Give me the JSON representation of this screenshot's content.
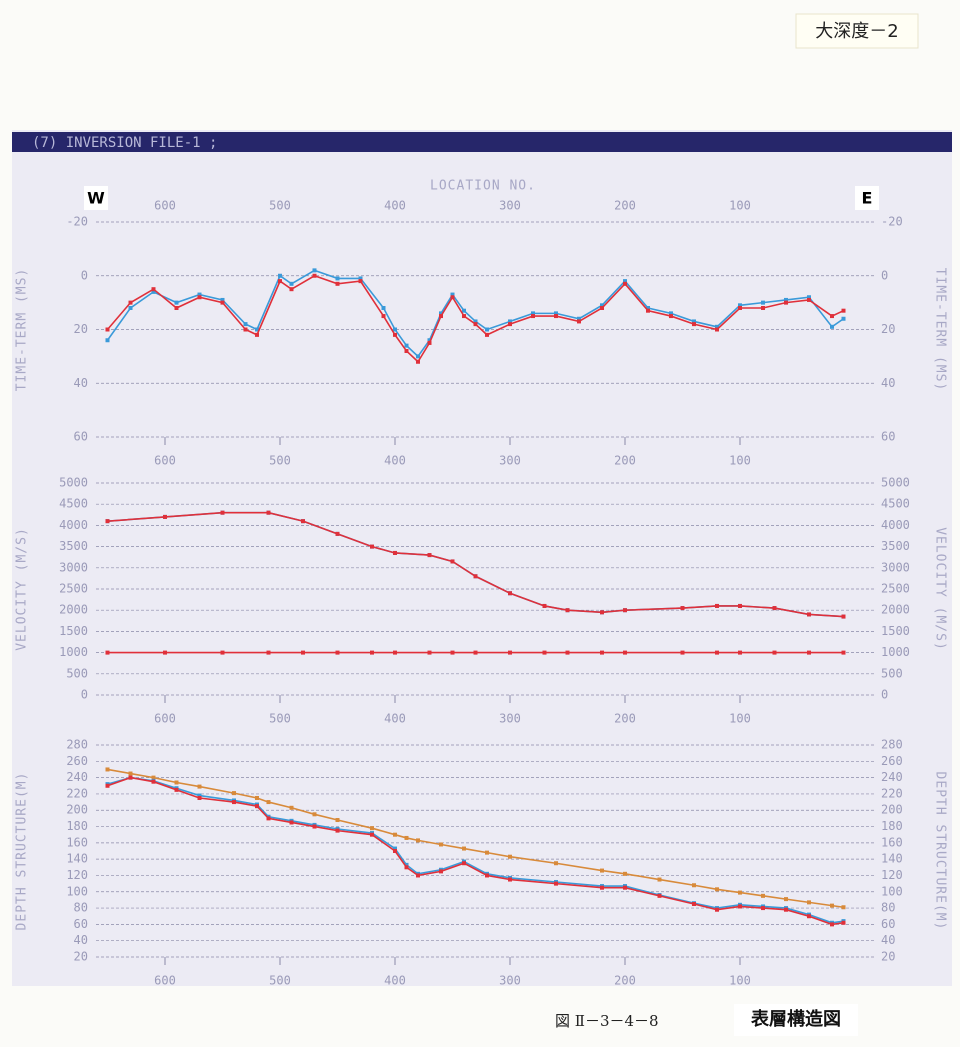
{
  "header_label": "大深度－2",
  "window_title": "(7) INVERSION FILE-1 ;",
  "direction": {
    "west": "W",
    "east": "E"
  },
  "caption": {
    "figure_no": "図 Ⅱ－3－4－8",
    "title": "表層構造図"
  },
  "chart_data": [
    {
      "type": "line",
      "xlabel": "LOCATION NO.",
      "ylabel": "TIME-TERM (MS)",
      "xlim": [
        660,
        0
      ],
      "xticks": [
        600,
        500,
        400,
        300,
        200,
        100
      ],
      "ylim": [
        60,
        -20
      ],
      "yticks": [
        -20,
        0,
        20,
        40,
        60
      ],
      "grid": true,
      "x": [
        650,
        630,
        610,
        590,
        570,
        550,
        530,
        520,
        500,
        490,
        470,
        450,
        430,
        410,
        400,
        390,
        380,
        370,
        360,
        350,
        340,
        330,
        320,
        300,
        280,
        260,
        240,
        220,
        200,
        180,
        160,
        140,
        120,
        100,
        80,
        60,
        40,
        20,
        10
      ],
      "series": [
        {
          "color": "#3a9ad9",
          "values": [
            24,
            12,
            6,
            10,
            7,
            9,
            18,
            20,
            0,
            3,
            -2,
            1,
            1,
            12,
            20,
            26,
            30,
            24,
            14,
            7,
            13,
            17,
            20,
            17,
            14,
            14,
            16,
            11,
            2,
            12,
            14,
            17,
            19,
            11,
            10,
            9,
            8,
            19,
            16
          ]
        },
        {
          "color": "#e0303a",
          "values": [
            20,
            10,
            5,
            12,
            8,
            10,
            20,
            22,
            2,
            5,
            0,
            3,
            2,
            15,
            22,
            28,
            32,
            25,
            15,
            8,
            15,
            18,
            22,
            18,
            15,
            15,
            17,
            12,
            3,
            13,
            15,
            18,
            20,
            12,
            12,
            10,
            9,
            15,
            13
          ]
        }
      ]
    },
    {
      "type": "line",
      "ylabel": "VELOCITY (M/S)",
      "xlim": [
        660,
        0
      ],
      "xticks": [
        600,
        500,
        400,
        300,
        200,
        100
      ],
      "ylim": [
        0,
        5000
      ],
      "yticks": [
        0,
        500,
        1000,
        1500,
        2000,
        2500,
        3000,
        3500,
        4000,
        4500,
        5000
      ],
      "grid": true,
      "x": [
        650,
        600,
        550,
        510,
        480,
        450,
        420,
        400,
        370,
        350,
        330,
        300,
        270,
        250,
        220,
        200,
        150,
        120,
        100,
        70,
        40,
        10
      ],
      "series": [
        {
          "color": "#3a9ad9",
          "values": [
            4100,
            4200,
            4300,
            4300,
            4100,
            3800,
            3500,
            3350,
            3300,
            3150,
            2800,
            2400,
            2100,
            2000,
            1950,
            2000,
            2050,
            2100,
            2100,
            2050,
            1900,
            1850
          ]
        },
        {
          "color": "#e0303a",
          "values": [
            4100,
            4200,
            4300,
            4300,
            4100,
            3800,
            3500,
            3350,
            3300,
            3150,
            2800,
            2400,
            2100,
            2000,
            1950,
            2000,
            2050,
            2100,
            2100,
            2050,
            1900,
            1850
          ]
        },
        {
          "color": "#e0303a",
          "values": [
            1000,
            1000,
            1000,
            1000,
            1000,
            1000,
            1000,
            1000,
            1000,
            1000,
            1000,
            1000,
            1000,
            1000,
            1000,
            1000,
            1000,
            1000,
            1000,
            1000,
            1000,
            1000
          ]
        }
      ]
    },
    {
      "type": "line",
      "ylabel": "DEPTH STRUCTURE(M)",
      "xlim": [
        660,
        0
      ],
      "xticks": [
        600,
        500,
        400,
        300,
        200,
        100
      ],
      "ylim": [
        20,
        280
      ],
      "yticks": [
        20,
        40,
        60,
        80,
        100,
        120,
        140,
        160,
        180,
        200,
        220,
        240,
        260,
        280
      ],
      "grid": true,
      "x": [
        650,
        630,
        610,
        590,
        570,
        540,
        520,
        510,
        490,
        470,
        450,
        420,
        400,
        390,
        380,
        360,
        340,
        320,
        300,
        260,
        220,
        200,
        170,
        140,
        120,
        100,
        80,
        60,
        40,
        20,
        10
      ],
      "series": [
        {
          "color": "#d88a3a",
          "values": [
            250,
            245,
            240,
            234,
            229,
            221,
            215,
            210,
            203,
            195,
            188,
            178,
            170,
            166,
            163,
            158,
            153,
            148,
            143,
            135,
            126,
            122,
            115,
            108,
            103,
            99,
            95,
            91,
            87,
            83,
            81
          ]
        },
        {
          "color": "#3a9ad9",
          "values": [
            232,
            240,
            236,
            227,
            218,
            212,
            207,
            192,
            187,
            182,
            177,
            172,
            153,
            133,
            122,
            127,
            137,
            122,
            117,
            112,
            107,
            107,
            96,
            86,
            80,
            84,
            82,
            80,
            72,
            62,
            64
          ]
        },
        {
          "color": "#e0303a",
          "values": [
            230,
            240,
            235,
            225,
            215,
            210,
            205,
            190,
            185,
            180,
            175,
            170,
            150,
            130,
            120,
            125,
            135,
            120,
            115,
            110,
            105,
            105,
            95,
            85,
            78,
            82,
            80,
            78,
            70,
            60,
            62
          ]
        }
      ]
    }
  ]
}
